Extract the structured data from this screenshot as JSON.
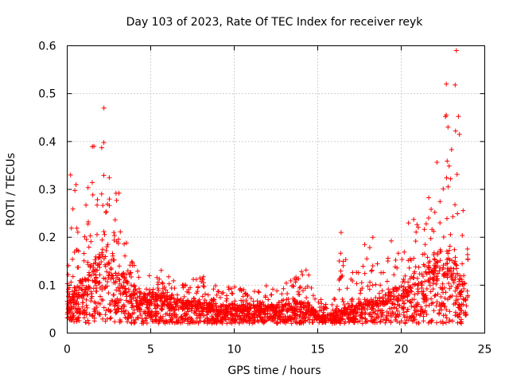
{
  "chart_data": {
    "type": "scatter",
    "title": "Day 103 of 2023, Rate Of TEC Index for receiver reyk",
    "xlabel": "GPS time / hours",
    "ylabel": "ROTI / TECUs",
    "xlim": [
      0,
      25
    ],
    "ylim": [
      0,
      0.6
    ],
    "x_ticks": [
      "0",
      "5",
      "10",
      "15",
      "20",
      "25"
    ],
    "y_ticks": [
      "0",
      "0.1",
      "0.2",
      "0.3",
      "0.4",
      "0.5",
      "0.6"
    ],
    "grid": true,
    "marker": "+",
    "series_color": "#ff0000",
    "envelope": {
      "hours": [
        0,
        0.5,
        1,
        1.5,
        2,
        2.2,
        2.5,
        3,
        3.5,
        4,
        4.5,
        5,
        5.5,
        6,
        7,
        8,
        9,
        10,
        11,
        12,
        13,
        14,
        14.5,
        15,
        15.5,
        16,
        16.5,
        17,
        18,
        19,
        20,
        20.5,
        21,
        21.5,
        22,
        22.5,
        22.8,
        23,
        23.3,
        23.6,
        24
      ],
      "typical_roti": [
        0.06,
        0.07,
        0.08,
        0.1,
        0.12,
        0.14,
        0.12,
        0.1,
        0.08,
        0.07,
        0.06,
        0.06,
        0.06,
        0.055,
        0.05,
        0.05,
        0.045,
        0.045,
        0.045,
        0.045,
        0.045,
        0.05,
        0.045,
        0.035,
        0.03,
        0.035,
        0.04,
        0.045,
        0.05,
        0.06,
        0.07,
        0.08,
        0.09,
        0.1,
        0.11,
        0.12,
        0.12,
        0.11,
        0.1,
        0.08,
        0.06
      ],
      "peak_roti": [
        0.15,
        0.33,
        0.25,
        0.39,
        0.38,
        0.47,
        0.38,
        0.35,
        0.2,
        0.15,
        0.13,
        0.12,
        0.14,
        0.12,
        0.1,
        0.13,
        0.1,
        0.1,
        0.09,
        0.1,
        0.1,
        0.15,
        0.12,
        0.08,
        0.06,
        0.1,
        0.21,
        0.12,
        0.2,
        0.18,
        0.22,
        0.24,
        0.3,
        0.28,
        0.32,
        0.52,
        0.43,
        0.4,
        0.59,
        0.35,
        0.2
      ]
    },
    "notable_points": [
      {
        "hour": 0.2,
        "roti": 0.33
      },
      {
        "hour": 2.2,
        "roti": 0.47
      },
      {
        "hour": 1.6,
        "roti": 0.39
      },
      {
        "hour": 16.4,
        "roti": 0.21
      },
      {
        "hour": 18.3,
        "roti": 0.2
      },
      {
        "hour": 22.7,
        "roti": 0.52
      },
      {
        "hour": 22.8,
        "roti": 0.43
      },
      {
        "hour": 23.3,
        "roti": 0.59
      }
    ]
  }
}
